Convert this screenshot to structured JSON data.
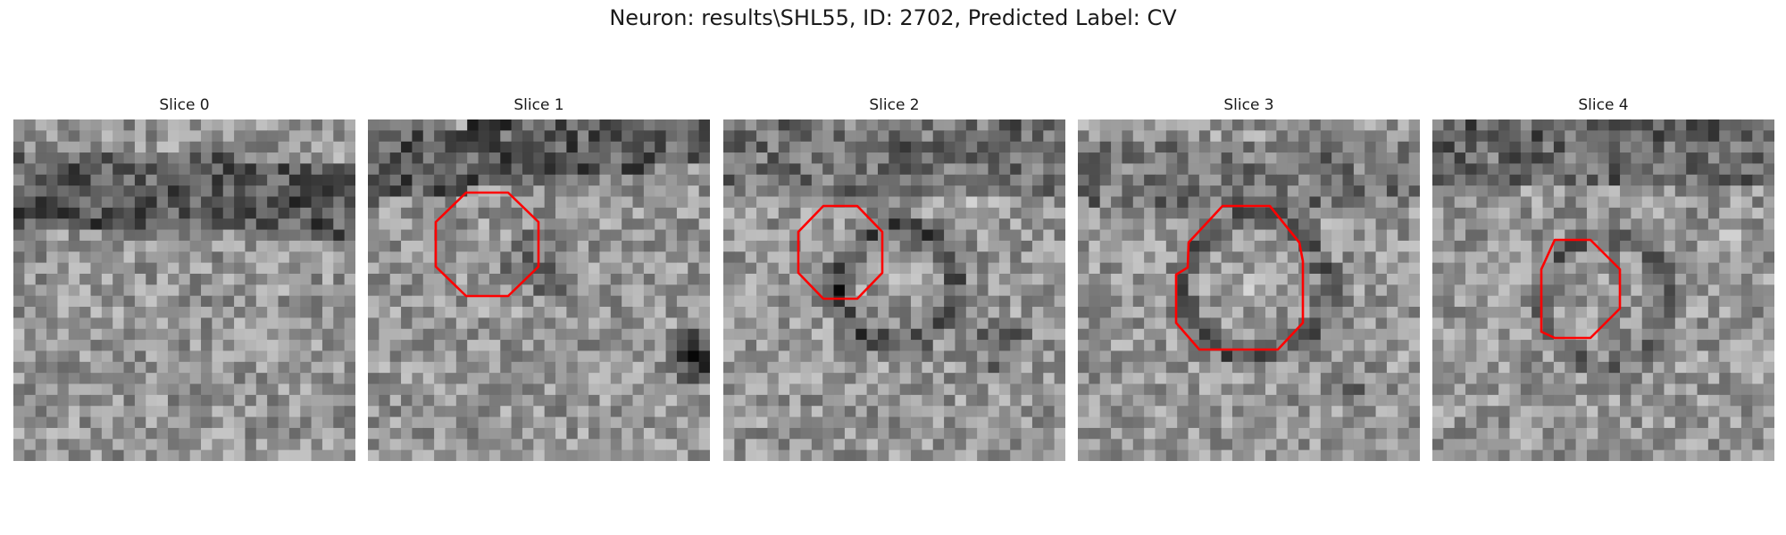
{
  "figure": {
    "title": "Neuron: results\\SHL55, ID: 2702, Predicted Label: CV"
  },
  "panels": [
    {
      "title": "Slice 0",
      "outline": false
    },
    {
      "title": "Slice 1",
      "outline": true,
      "outline_color": "#ff0000"
    },
    {
      "title": "Slice 2",
      "outline": true,
      "outline_color": "#ff0000"
    },
    {
      "title": "Slice 3",
      "outline": true,
      "outline_color": "#ff0000"
    },
    {
      "title": "Slice 4",
      "outline": true,
      "outline_color": "#ff0000"
    }
  ]
}
